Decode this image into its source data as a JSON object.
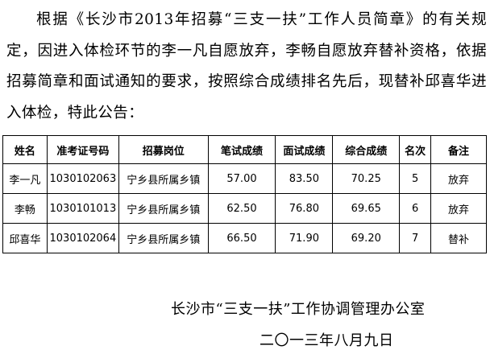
{
  "body": {
    "paragraph": "根据《长沙市2013年招募“三支一扶”工作人员简章》的有关规定，因进入体检环节的李一凡自愿放弃，李畅自愿放弃替补资格，依据招募简章和面试通知的要求，按照综合成绩排名先后，现替补邱喜华进入体检，特此公告："
  },
  "table": {
    "headers": [
      "姓名",
      "准考证号码",
      "招募岗位",
      "笔试成绩",
      "面试成绩",
      "综合成绩",
      "名次",
      "备注"
    ],
    "rows": [
      [
        "李一凡",
        "1030102063",
        "宁乡县所属乡镇",
        "57.00",
        "83.50",
        "70.25",
        "5",
        "放弃"
      ],
      [
        "李畅",
        "1030101013",
        "宁乡县所属乡镇",
        "62.50",
        "76.80",
        "69.65",
        "6",
        "放弃"
      ],
      [
        "邱喜华",
        "1030102064",
        "宁乡县所属乡镇",
        "66.50",
        "71.90",
        "69.20",
        "7",
        "替补"
      ]
    ]
  },
  "signature": {
    "org": "长沙市“三支一扶”工作协调管理办公室",
    "date": "二〇一三年八月九日"
  }
}
